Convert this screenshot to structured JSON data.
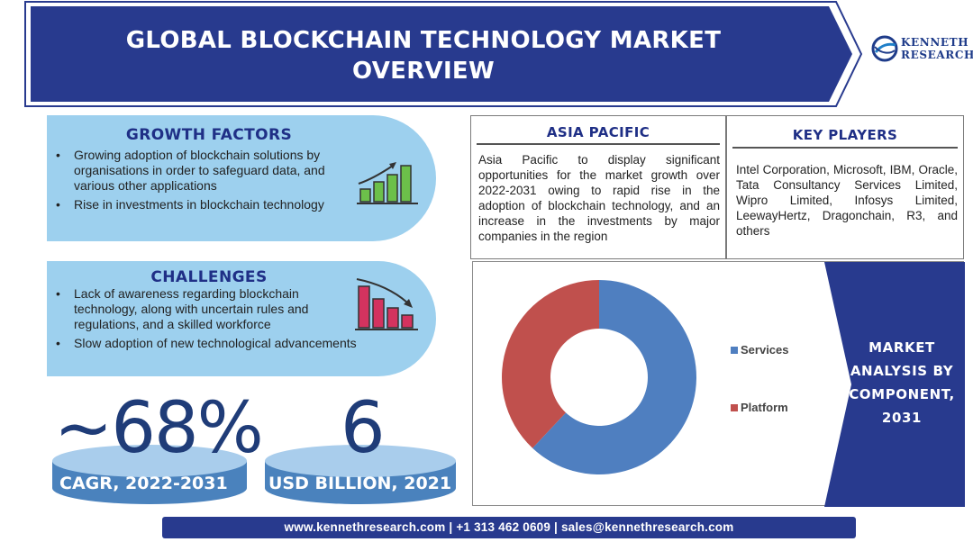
{
  "header": {
    "title": "GLOBAL BLOCKCHAIN TECHNOLOGY MARKET OVERVIEW"
  },
  "logo": {
    "line1": "KENNETH",
    "line2": "RESEARCH"
  },
  "growth_factors": {
    "heading": "GROWTH FACTORS",
    "items": [
      "Growing adoption of blockchain solutions by organisations in order to safeguard data, and various other applications",
      "Rise in investments in blockchain technology"
    ],
    "icon": "rising-bar-chart-icon"
  },
  "challenges": {
    "heading": "CHALLENGES",
    "items": [
      "Lack of awareness regarding blockchain technology, along with uncertain rules and regulations, and a skilled workforce",
      "Slow adoption of new technological advancements"
    ],
    "icon": "declining-bar-chart-icon"
  },
  "stats": {
    "cagr": {
      "value": "~68%",
      "label": "CAGR, 2022-2031"
    },
    "market_size": {
      "value": "6",
      "label": "USD BILLION, 2021"
    }
  },
  "asia_pacific": {
    "heading": "ASIA PACIFIC",
    "text": "Asia Pacific to display significant opportunities for the market growth over 2022-2031 owing to rapid rise in the adoption of blockchain technology, and an increase in the investments by major companies in the region"
  },
  "key_players": {
    "heading": "KEY PLAYERS",
    "text": "Intel Corporation, Microsoft, IBM, Oracle, Tata Consultancy Services Limited, Wipro Limited, Infosys Limited, LeewayHertz, Dragonchain, R3, and others"
  },
  "component_panel": {
    "title": "MARKET ANALYSIS BY COMPONENT, 2031"
  },
  "chart_data": {
    "type": "pie",
    "style": "donut",
    "title": "",
    "categories": [
      "Services",
      "Platform"
    ],
    "values": [
      62,
      38
    ],
    "colors": [
      "#4f7fc0",
      "#c0504d"
    ],
    "legend_position": "right"
  },
  "footer": {
    "text": "www.kennethresearch.com | +1 313 462 0609 | sales@kennethresearch.com"
  },
  "colors": {
    "navy": "#283a8e",
    "panel_blue": "#9dd0ee",
    "heading_blue": "#1f2f86",
    "stat_disc": "#7fb6e0"
  }
}
